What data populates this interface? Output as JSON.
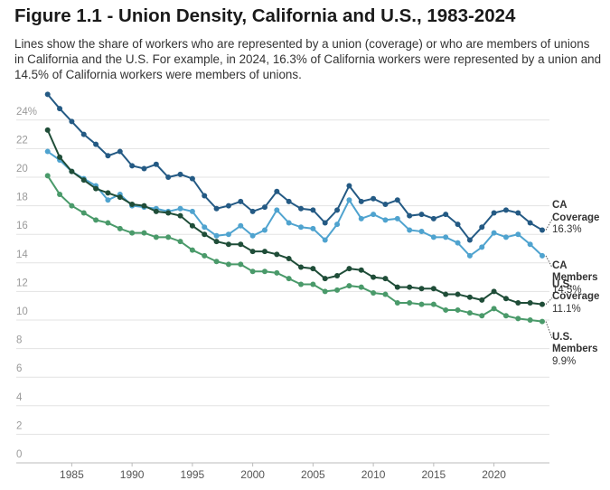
{
  "chart_data": {
    "type": "line",
    "title": "Figure 1.1 - Union Density, California and U.S., 1983-2024",
    "subtitle": "Lines show the share of workers who are represented by a union (coverage) or who are members of unions in California and the U.S. For example, in 2024, 16.3% of California workers were represented by a union and 14.5% of California workers were members of unions.",
    "x": [
      1983,
      1984,
      1985,
      1986,
      1987,
      1988,
      1989,
      1990,
      1991,
      1992,
      1993,
      1994,
      1995,
      1996,
      1997,
      1998,
      1999,
      2000,
      2001,
      2002,
      2003,
      2004,
      2005,
      2006,
      2007,
      2008,
      2009,
      2010,
      2011,
      2012,
      2013,
      2014,
      2015,
      2016,
      2017,
      2018,
      2019,
      2020,
      2021,
      2022,
      2023,
      2024
    ],
    "xlim": [
      1980.4,
      2024.6
    ],
    "xticks": [
      1985,
      1990,
      1995,
      2000,
      2005,
      2010,
      2015,
      2020
    ],
    "ylim": [
      0,
      27
    ],
    "yticks": [
      0,
      2,
      4,
      6,
      8,
      10,
      12,
      14,
      16,
      18,
      20,
      22,
      {
        "value": 24,
        "label": "24%"
      }
    ],
    "grid": true,
    "series": [
      {
        "name": "CA Coverage",
        "color": "#245a84",
        "values": [
          25.8,
          24.8,
          23.9,
          23.0,
          22.3,
          21.5,
          21.8,
          20.8,
          20.6,
          20.9,
          20.0,
          20.2,
          19.9,
          18.7,
          17.8,
          18.0,
          18.3,
          17.6,
          17.9,
          19.0,
          18.3,
          17.8,
          17.7,
          16.8,
          17.7,
          19.4,
          18.3,
          18.5,
          18.1,
          18.4,
          17.3,
          17.4,
          17.1,
          17.4,
          16.7,
          15.6,
          16.5,
          17.5,
          17.7,
          17.5,
          16.8,
          16.3
        ],
        "value_labels": [
          null,
          null,
          null,
          null,
          null,
          null,
          null,
          null,
          null,
          null,
          null,
          null,
          null,
          null,
          null,
          null,
          null,
          null,
          null,
          null,
          null,
          null,
          null,
          null,
          null,
          null,
          null,
          null,
          null,
          null,
          null,
          null,
          null,
          null,
          null,
          null,
          null,
          null,
          null,
          null,
          null,
          "16.3%"
        ]
      },
      {
        "name": "CA Members",
        "color": "#4fa3cf",
        "values": [
          21.8,
          21.2,
          20.4,
          19.9,
          19.4,
          18.4,
          18.8,
          18.0,
          17.9,
          17.8,
          17.6,
          17.8,
          17.6,
          16.5,
          15.9,
          16.0,
          16.6,
          15.9,
          16.3,
          17.7,
          16.8,
          16.5,
          16.4,
          15.6,
          16.7,
          18.4,
          17.1,
          17.4,
          17.0,
          17.1,
          16.3,
          16.2,
          15.8,
          15.8,
          15.4,
          14.5,
          15.1,
          16.1,
          15.8,
          16.0,
          15.3,
          14.5
        ],
        "value_labels": [
          null,
          null,
          null,
          null,
          null,
          null,
          null,
          null,
          null,
          null,
          null,
          null,
          null,
          null,
          null,
          null,
          null,
          null,
          null,
          null,
          null,
          null,
          null,
          null,
          null,
          null,
          null,
          null,
          null,
          null,
          null,
          null,
          null,
          null,
          null,
          null,
          null,
          null,
          null,
          null,
          null,
          "14.5%"
        ]
      },
      {
        "name": "U.S. Coverage",
        "color": "#1f4d38",
        "values": [
          23.3,
          21.4,
          20.4,
          19.8,
          19.2,
          18.9,
          18.6,
          18.1,
          18.0,
          17.6,
          17.5,
          17.3,
          16.6,
          16.0,
          15.5,
          15.3,
          15.3,
          14.8,
          14.8,
          14.6,
          14.3,
          13.7,
          13.6,
          12.9,
          13.1,
          13.6,
          13.5,
          13.0,
          12.9,
          12.3,
          12.3,
          12.2,
          12.2,
          11.8,
          11.8,
          11.6,
          11.4,
          12.0,
          11.5,
          11.2,
          11.2,
          11.1
        ],
        "value_labels": [
          null,
          null,
          null,
          null,
          null,
          null,
          null,
          null,
          null,
          null,
          null,
          null,
          null,
          null,
          null,
          null,
          null,
          null,
          null,
          null,
          null,
          null,
          null,
          null,
          null,
          null,
          null,
          null,
          null,
          null,
          null,
          null,
          null,
          null,
          null,
          null,
          null,
          null,
          null,
          null,
          null,
          "11.1%"
        ]
      },
      {
        "name": "U.S. Members",
        "color": "#4a9a6a",
        "values": [
          20.1,
          18.8,
          18.0,
          17.5,
          17.0,
          16.8,
          16.4,
          16.1,
          16.1,
          15.8,
          15.8,
          15.5,
          14.9,
          14.5,
          14.1,
          13.9,
          13.9,
          13.4,
          13.4,
          13.3,
          12.9,
          12.5,
          12.5,
          12.0,
          12.1,
          12.4,
          12.3,
          11.9,
          11.8,
          11.2,
          11.2,
          11.1,
          11.1,
          10.7,
          10.7,
          10.5,
          10.3,
          10.8,
          10.3,
          10.1,
          10.0,
          9.9
        ],
        "value_labels": [
          null,
          null,
          null,
          null,
          null,
          null,
          null,
          null,
          null,
          null,
          null,
          null,
          null,
          null,
          null,
          null,
          null,
          null,
          null,
          null,
          null,
          null,
          null,
          null,
          null,
          null,
          null,
          null,
          null,
          null,
          null,
          null,
          null,
          null,
          null,
          null,
          null,
          null,
          null,
          null,
          null,
          "9.9%"
        ]
      }
    ]
  }
}
